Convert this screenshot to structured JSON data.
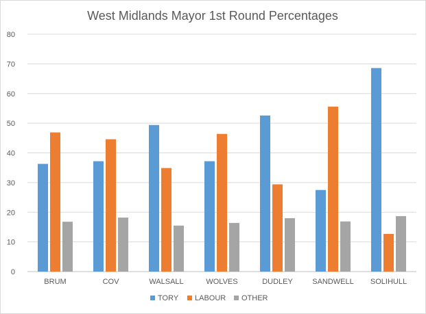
{
  "chart_data": {
    "type": "bar",
    "title": "West Midlands Mayor 1st Round Percentages",
    "xlabel": "",
    "ylabel": "",
    "categories": [
      "BRUM",
      "COV",
      "WALSALL",
      "WOLVES",
      "DUDLEY",
      "SANDWELL",
      "SOLIHULL"
    ],
    "ylim": [
      0,
      80
    ],
    "yticks": [
      0,
      10,
      20,
      30,
      40,
      50,
      60,
      70,
      80
    ],
    "grid": true,
    "legend_position": "bottom",
    "series": [
      {
        "name": "TORY",
        "color": "#5b9bd5",
        "values": [
          36.3,
          37.2,
          49.4,
          37.2,
          52.6,
          27.5,
          68.6
        ]
      },
      {
        "name": "LABOUR",
        "color": "#ed7d31",
        "values": [
          46.9,
          44.6,
          34.9,
          46.4,
          29.4,
          55.6,
          12.7
        ]
      },
      {
        "name": "OTHER",
        "color": "#a5a5a5",
        "values": [
          16.8,
          18.2,
          15.5,
          16.4,
          18.0,
          16.9,
          18.7
        ]
      }
    ]
  }
}
